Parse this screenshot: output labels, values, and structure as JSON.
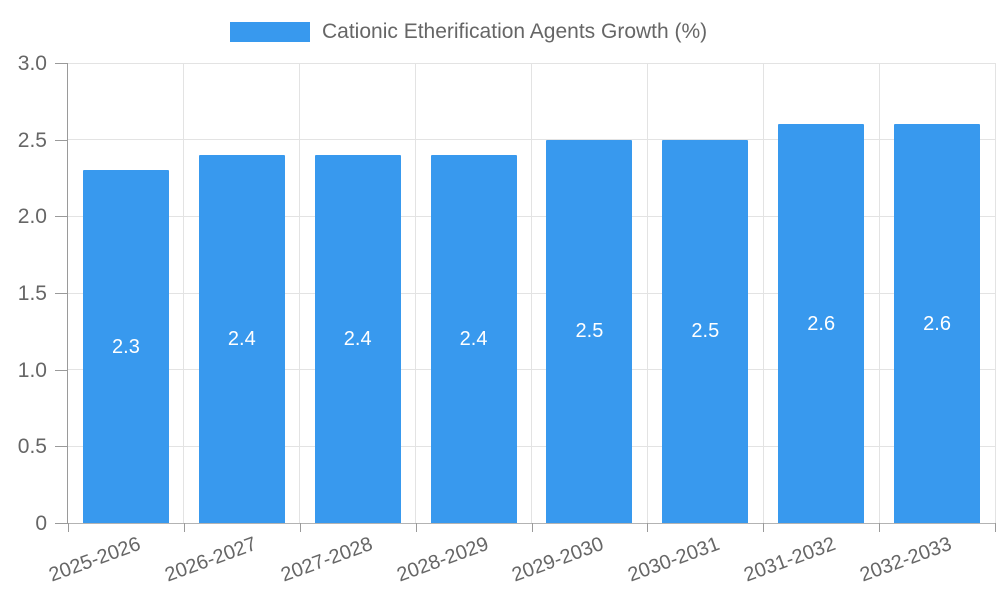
{
  "legend": {
    "label": "Cationic Etherification Agents Growth (%)",
    "swatch_color": "#3899EE"
  },
  "chart_data": {
    "type": "bar",
    "title": "Cationic Etherification Agents Growth (%)",
    "categories": [
      "2025-2026",
      "2026-2027",
      "2027-2028",
      "2028-2029",
      "2029-2030",
      "2030-2031",
      "2031-2032",
      "2032-2033"
    ],
    "series": [
      {
        "name": "Cationic Etherification Agents Growth (%)",
        "values": [
          2.3,
          2.4,
          2.4,
          2.4,
          2.5,
          2.5,
          2.6,
          2.6
        ]
      }
    ],
    "value_labels": [
      "2.3",
      "2.4",
      "2.4",
      "2.4",
      "2.5",
      "2.5",
      "2.6",
      "2.6"
    ],
    "xlabel": "",
    "ylabel": "",
    "ylim": [
      0,
      3.0
    ],
    "y_ticks": [
      {
        "value": 3.0,
        "label": "3.0"
      },
      {
        "value": 2.5,
        "label": "2.5"
      },
      {
        "value": 2.0,
        "label": "2.0"
      },
      {
        "value": 1.5,
        "label": "1.5"
      },
      {
        "value": 1.0,
        "label": "1.0"
      },
      {
        "value": 0.5,
        "label": "0.5"
      },
      {
        "value": 0.0,
        "label": "0"
      }
    ],
    "grid": true,
    "legend_position": "top"
  },
  "colors": {
    "bar": "#3899EE",
    "grid": "#e3e3e3",
    "axis": "#9a9a9a",
    "tick_text": "#666666",
    "value_label_text": "#ffffff",
    "background": "#ffffff"
  }
}
